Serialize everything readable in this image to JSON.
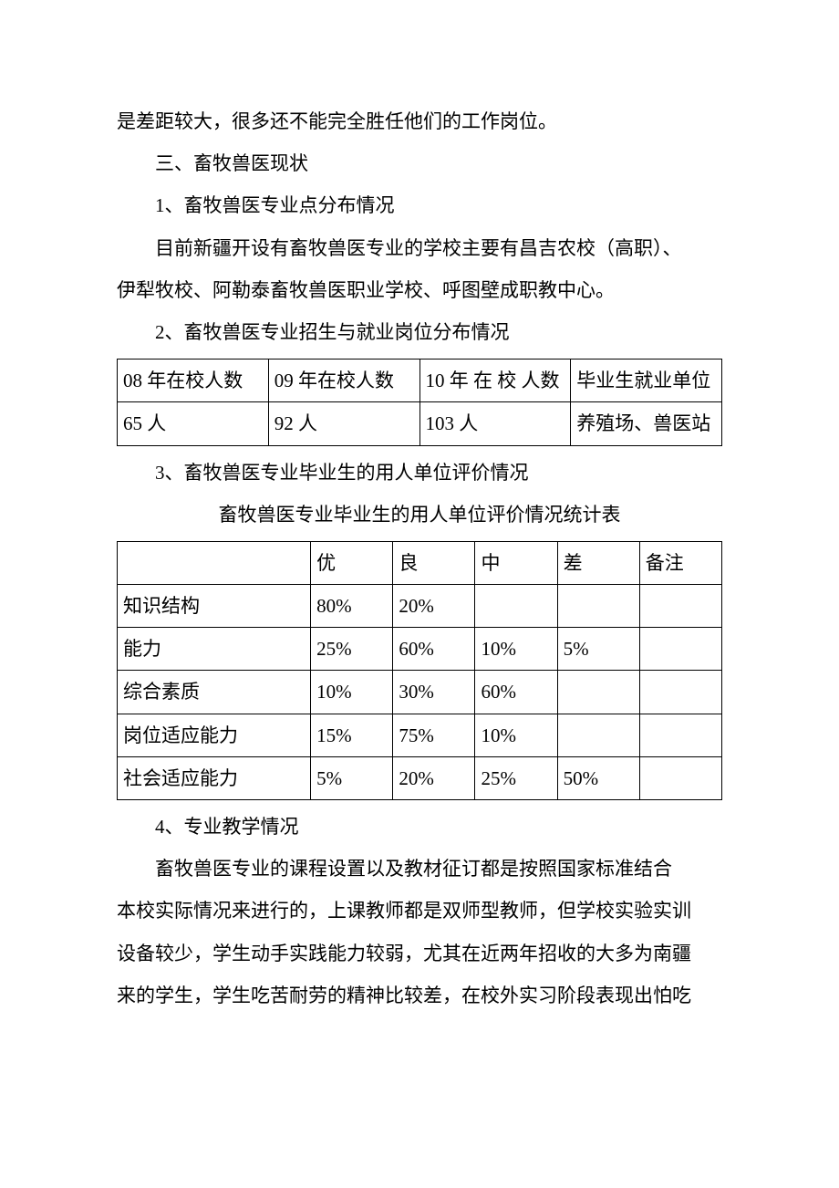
{
  "text": {
    "line1": "是差距较大，很多还不能完全胜任他们的工作岗位。",
    "h3": "三、畜牧兽医现状",
    "sub1": "1、畜牧兽医专业点分布情况",
    "p1a": "目前新疆开设有畜牧兽医专业的学校主要有昌吉农校（高职）、",
    "p1b": "伊犁牧校、阿勒泰畜牧兽医职业学校、呼图壁成职教中心。",
    "sub2": "2、畜牧兽医专业招生与就业岗位分布情况",
    "sub3": "3、畜牧兽医专业毕业生的用人单位评价情况",
    "caption2": "畜牧兽医专业毕业生的用人单位评价情况统计表",
    "sub4": "4、专业教学情况",
    "p4a": "畜牧兽医专业的课程设置以及教材征订都是按照国家标准结合",
    "p4b": "本校实际情况来进行的，上课教师都是双师型教师，但学校实验实训",
    "p4c": "设备较少，学生动手实践能力较弱，尤其在近两年招收的大多为南疆",
    "p4d": "来的学生，学生吃苦耐劳的精神比较差，在校外实习阶段表现出怕吃"
  },
  "table1": {
    "type": "table",
    "border_color": "#000000",
    "columns": [
      "08 年在校人数",
      "09 年在校人数",
      "10 年 在 校 人数",
      "毕业生就业单位"
    ],
    "rows": [
      [
        "65 人",
        "92 人",
        "103 人",
        "养殖场、兽医站"
      ]
    ],
    "font_size": 21,
    "text_color": "#000000",
    "background_color": "#ffffff"
  },
  "table2": {
    "type": "table",
    "border_color": "#000000",
    "columns": [
      "",
      "优",
      "良",
      "中",
      "差",
      "备注"
    ],
    "rows": [
      [
        "知识结构",
        "80%",
        "20%",
        "",
        "",
        ""
      ],
      [
        "能力",
        "25%",
        "60%",
        "10%",
        "5%",
        ""
      ],
      [
        "综合素质",
        "10%",
        "30%",
        "60%",
        "",
        ""
      ],
      [
        "岗位适应能力",
        "15%",
        "75%",
        "10%",
        "",
        ""
      ],
      [
        "社会适应能力",
        "5%",
        "20%",
        "25%",
        "50%",
        ""
      ]
    ],
    "font_size": 21,
    "text_color": "#000000",
    "background_color": "#ffffff"
  }
}
